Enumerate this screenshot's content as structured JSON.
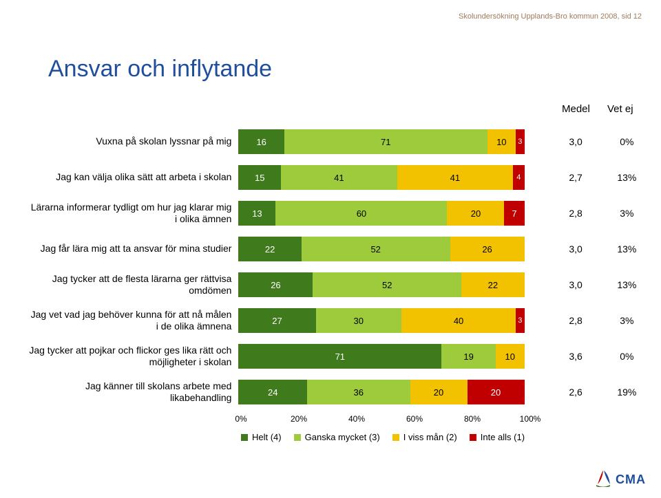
{
  "header": "Skolundersökning Upplands-Bro kommun 2008, sid 12",
  "title": "Ansvar och inflytande",
  "columns": {
    "medel": "Medel",
    "vetej": "Vet ej"
  },
  "colors": {
    "seg4": "#3f7a1c",
    "seg3": "#9ecb3c",
    "seg2": "#f2c200",
    "seg1": "#c00000",
    "text_on_dark": "#ffffff",
    "text_on_light": "#000000"
  },
  "rows": [
    {
      "label": "Vuxna på skolan lyssnar på mig",
      "seg": [
        16,
        71,
        10,
        3
      ],
      "medel": "3,0",
      "vetej": "0%"
    },
    {
      "label": "Jag kan välja olika sätt att arbeta i skolan",
      "seg": [
        15,
        41,
        41,
        4
      ],
      "medel": "2,7",
      "vetej": "13%"
    },
    {
      "label": "Lärarna informerar tydligt om hur jag klarar mig i olika ämnen",
      "seg": [
        13,
        60,
        20,
        7
      ],
      "medel": "2,8",
      "vetej": "3%"
    },
    {
      "label": "Jag får lära mig att ta ansvar för mina studier",
      "seg": [
        22,
        52,
        26,
        0
      ],
      "medel": "3,0",
      "vetej": "13%"
    },
    {
      "label": "Jag tycker att de flesta lärarna ger rättvisa omdömen",
      "seg": [
        26,
        52,
        22,
        0
      ],
      "medel": "3,0",
      "vetej": "13%"
    },
    {
      "label": "Jag vet vad jag behöver kunna för att nå målen i de olika ämnena",
      "seg": [
        27,
        30,
        40,
        3
      ],
      "medel": "2,8",
      "vetej": "3%"
    },
    {
      "label": "Jag tycker att pojkar och flickor ges lika rätt och möjligheter i skolan",
      "seg": [
        71,
        19,
        10,
        0
      ],
      "medel": "3,6",
      "vetej": "0%"
    },
    {
      "label": "Jag känner till skolans arbete med likabehandling",
      "seg": [
        24,
        36,
        20,
        20
      ],
      "medel": "2,6",
      "vetej": "19%"
    }
  ],
  "axis": {
    "ticks": [
      0,
      20,
      40,
      60,
      80,
      100
    ],
    "labels": [
      "0%",
      "20%",
      "40%",
      "60%",
      "80%",
      "100%"
    ]
  },
  "legend": [
    {
      "label": "Helt (4)",
      "color_key": "seg4"
    },
    {
      "label": "Ganska mycket (3)",
      "color_key": "seg3"
    },
    {
      "label": "I viss mån (2)",
      "color_key": "seg2"
    },
    {
      "label": "Inte alls (1)",
      "color_key": "seg1"
    }
  ],
  "layout": {
    "bar_seg_text_min_pct": 4
  },
  "logo_text": "CMA"
}
